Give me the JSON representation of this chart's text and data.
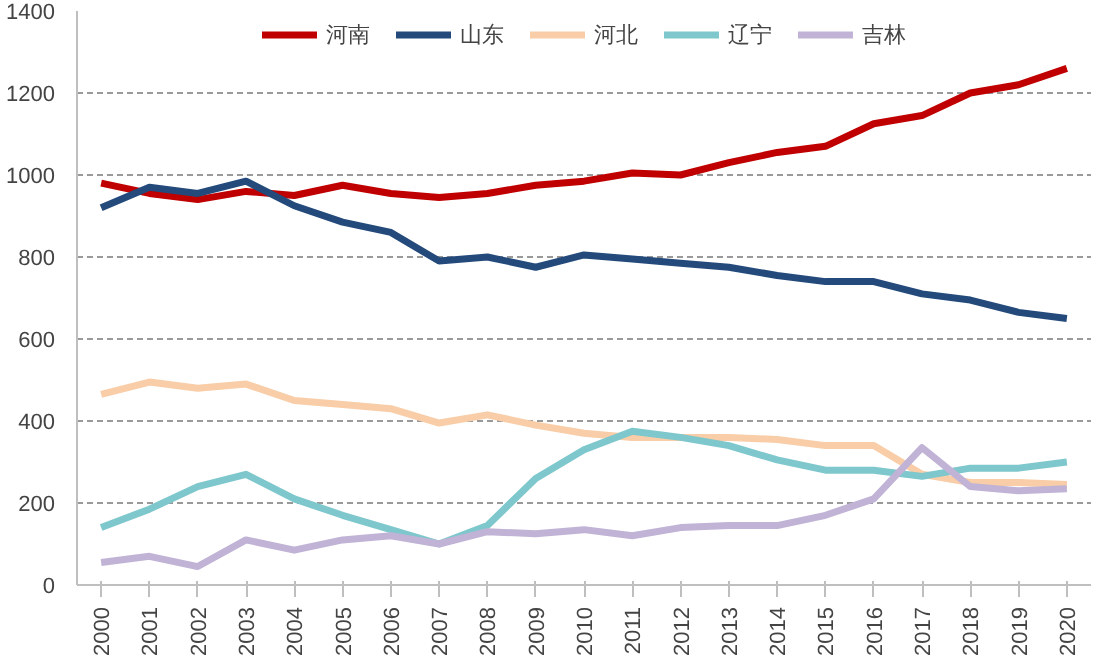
{
  "chart_data": {
    "type": "line",
    "categories": [
      "2000",
      "2001",
      "2002",
      "2003",
      "2004",
      "2005",
      "2006",
      "2007",
      "2008",
      "2009",
      "2010",
      "2011",
      "2012",
      "2013",
      "2014",
      "2015",
      "2016",
      "2017",
      "2018",
      "2019",
      "2020"
    ],
    "series": [
      {
        "name": "河南",
        "color": "#c00000",
        "values": [
          980,
          955,
          940,
          960,
          950,
          975,
          955,
          945,
          955,
          975,
          985,
          1005,
          1000,
          1030,
          1055,
          1070,
          1125,
          1145,
          1200,
          1220,
          1260
        ]
      },
      {
        "name": "山东",
        "color": "#234a7b",
        "values": [
          920,
          970,
          955,
          985,
          925,
          885,
          860,
          790,
          800,
          775,
          805,
          795,
          785,
          775,
          755,
          740,
          740,
          710,
          695,
          665,
          650
        ]
      },
      {
        "name": "河北",
        "color": "#f8cda7",
        "values": [
          465,
          495,
          480,
          490,
          450,
          440,
          430,
          395,
          415,
          390,
          370,
          360,
          360,
          360,
          355,
          340,
          340,
          270,
          250,
          250,
          245
        ]
      },
      {
        "name": "辽宁",
        "color": "#7ec7cc",
        "values": [
          140,
          185,
          240,
          270,
          210,
          170,
          135,
          100,
          145,
          260,
          330,
          375,
          360,
          340,
          305,
          280,
          280,
          265,
          285,
          285,
          300
        ]
      },
      {
        "name": "吉林",
        "color": "#c0b3d6",
        "values": [
          55,
          70,
          45,
          110,
          85,
          110,
          120,
          100,
          130,
          125,
          135,
          120,
          140,
          145,
          145,
          170,
          210,
          335,
          240,
          230,
          235
        ]
      }
    ],
    "ylim": [
      0,
      1400
    ],
    "yticks": [
      0,
      200,
      400,
      600,
      800,
      1000,
      1200,
      1400
    ],
    "grid": "y",
    "legend": "top",
    "marker": "none",
    "line_style": "solid"
  }
}
